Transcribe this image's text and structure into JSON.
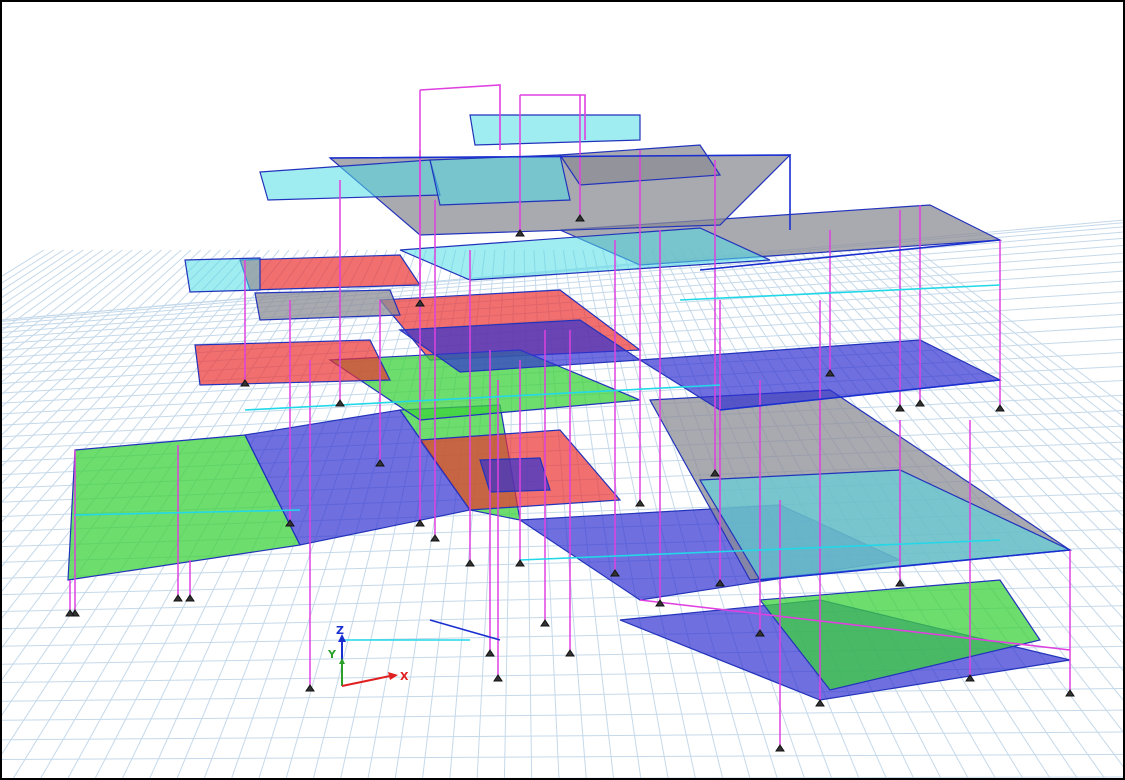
{
  "axes": {
    "z": "Z",
    "y": "Y",
    "x": "X"
  }
}
